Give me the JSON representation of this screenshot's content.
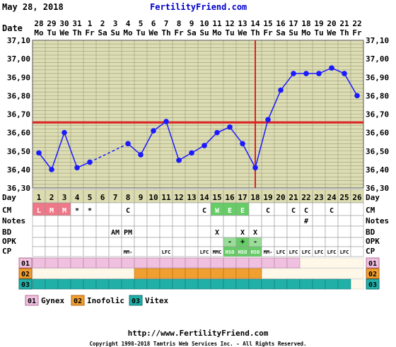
{
  "header": {
    "date": "May 28, 2018",
    "site": "FertilityFriend.com"
  },
  "labels": {
    "date": "Date",
    "day": "Day",
    "cm": "CM",
    "notes": "Notes",
    "bd": "BD",
    "opk": "OPK",
    "cp": "CP"
  },
  "chart_data": {
    "type": "line",
    "xlabel": "Day",
    "ylabel": "",
    "ylim": [
      36.3,
      37.1
    ],
    "y_ticks": [
      "37,10",
      "37,00",
      "36,90",
      "36,80",
      "36,70",
      "36,60",
      "36,50",
      "36,40",
      "36,30"
    ],
    "dates": [
      "28",
      "29",
      "30",
      "31",
      "1",
      "2",
      "3",
      "4",
      "5",
      "6",
      "7",
      "8",
      "9",
      "10",
      "11",
      "12",
      "13",
      "14",
      "15",
      "16",
      "17",
      "18",
      "19",
      "20",
      "21",
      "22"
    ],
    "weekdays": [
      "Mo",
      "Tu",
      "We",
      "Th",
      "Fr",
      "Sa",
      "Su",
      "Mo",
      "Tu",
      "We",
      "Th",
      "Fr",
      "Sa",
      "Su",
      "Mo",
      "Tu",
      "We",
      "Th",
      "Fr",
      "Sa",
      "Su",
      "Mo",
      "Tu",
      "We",
      "Th",
      "Fr"
    ],
    "cycle_days": [
      "1",
      "2",
      "3",
      "4",
      "5",
      "6",
      "7",
      "8",
      "9",
      "10",
      "11",
      "12",
      "13",
      "14",
      "15",
      "16",
      "17",
      "18",
      "19",
      "20",
      "21",
      "22",
      "23",
      "24",
      "25",
      "26"
    ],
    "series": [
      {
        "values": [
          36.49,
          36.4,
          36.6,
          36.41,
          36.44,
          null,
          null,
          36.54,
          36.48,
          36.61,
          36.66,
          36.45,
          36.49,
          36.53,
          36.6,
          36.63,
          36.54,
          36.41,
          36.67,
          36.83,
          36.92,
          36.92,
          36.92,
          36.95,
          36.92,
          36.8
        ]
      }
    ],
    "dashed_segment": [
      5,
      8
    ],
    "coverline": 36.655,
    "ovulation_day": 18,
    "grid": true,
    "colors": {
      "line": "#1a1aff",
      "coverline": "#dd2222",
      "plot_bg": "#ddddb4",
      "grid": "#9a9a7a"
    }
  },
  "rows": {
    "cm": [
      "L",
      "M",
      "M",
      "*",
      "*",
      "",
      "",
      "C",
      "",
      "",
      "",
      "",
      "",
      "C",
      "W",
      "E",
      "E",
      "",
      "C",
      "",
      "C",
      "C",
      "",
      "C",
      "",
      ""
    ],
    "cm_colors": [
      "#ee7788",
      "#ee7788",
      "#ee7788",
      "",
      "",
      "",
      "",
      "",
      "",
      "",
      "",
      "",
      "",
      "",
      "#66cc66",
      "#66cc66",
      "#66cc66",
      "",
      "",
      "",
      "",
      "",
      "",
      "",
      "",
      ""
    ],
    "notes": [
      "",
      "",
      "",
      "",
      "",
      "",
      "",
      "",
      "",
      "",
      "",
      "",
      "",
      "",
      "",
      "",
      "",
      "",
      "",
      "",
      "",
      "#",
      "",
      "",
      "",
      ""
    ],
    "bd": [
      "",
      "",
      "",
      "",
      "",
      "",
      "AM",
      "PM",
      "",
      "",
      "",
      "",
      "",
      "",
      "X",
      "",
      "X",
      "X",
      "",
      "",
      "",
      "",
      "",
      "",
      "",
      ""
    ],
    "opk": [
      "",
      "",
      "",
      "",
      "",
      "",
      "",
      "",
      "",
      "",
      "",
      "",
      "",
      "",
      "",
      "-",
      "+",
      "-",
      "",
      "",
      "",
      "",
      "",
      "",
      "",
      ""
    ],
    "cp": [
      "",
      "",
      "",
      "",
      "",
      "",
      "",
      "MM-",
      "",
      "",
      "LFC",
      "",
      "",
      "LFC",
      "MMC",
      "HSO",
      "HSO",
      "HSO",
      "MM-",
      "LFC",
      "LFC",
      "LFC",
      "LFC",
      "LFC",
      "LFC",
      ""
    ],
    "cp_highlight": [
      "",
      "",
      "",
      "",
      "",
      "",
      "",
      "",
      "",
      "",
      "",
      "",
      "",
      "",
      "",
      "#66cc66",
      "#66cc66",
      "#66cc66",
      "",
      "",
      "",
      "",
      "",
      "",
      "",
      ""
    ]
  },
  "meds": [
    {
      "num": "01",
      "name": "Gynex",
      "color": "#f0c0e0",
      "border": "#b07090",
      "start": 1,
      "end": 21
    },
    {
      "num": "02",
      "name": "Inofolic",
      "color": "#f0a030",
      "border": "#b06010",
      "start": 9,
      "end": 18
    },
    {
      "num": "03",
      "name": "Vitex",
      "color": "#20b0a8",
      "border": "#107070",
      "start": 1,
      "end": 25
    }
  ],
  "footer": {
    "url": "http://www.FertilityFriend.com",
    "copyright": "Copyright 1998-2018 Tamtris Web Services Inc. - All Rights Reserved."
  }
}
